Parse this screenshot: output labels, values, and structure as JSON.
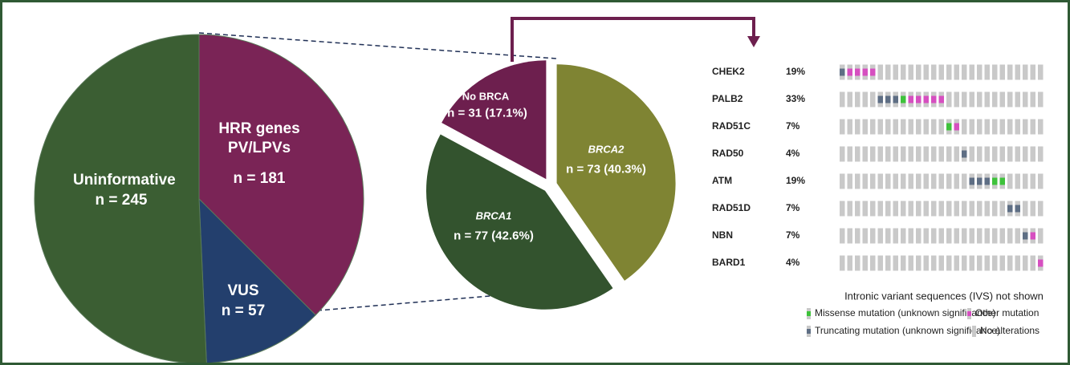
{
  "chart_data": [
    {
      "type": "pie",
      "categories": [
        "HRR genes PV/LPVs",
        "VUS",
        "Uninformative"
      ],
      "values": [
        181,
        57,
        245
      ],
      "value_labels": [
        "n = 181",
        "n = 57",
        "n = 245"
      ],
      "colors": [
        "#7a2456",
        "#233f6d",
        "#3b5e33"
      ]
    },
    {
      "type": "pie",
      "categories": [
        "BRCA2",
        "BRCA1",
        "No BRCA"
      ],
      "values": [
        73,
        77,
        31
      ],
      "value_labels": [
        "n = 73 (40.3%)",
        "n = 77 (42.6%)",
        "n = 31 (17.1%)"
      ],
      "colors": [
        "#7f8433",
        "#33532e",
        "#6d1f4e"
      ]
    },
    {
      "type": "oncoprint",
      "genes": [
        "CHEK2",
        "PALB2",
        "RAD51C",
        "RAD50",
        "ATM",
        "RAD51D",
        "NBN",
        "BARD1"
      ],
      "percents": [
        "19%",
        "33%",
        "7%",
        "4%",
        "19%",
        "7%",
        "7%",
        "4%"
      ],
      "note": "Intronic variant sequences (IVS) not shown",
      "legend": [
        {
          "name": "Missense mutation (unknown significance)",
          "color": "#3ec23b"
        },
        {
          "name": "Other mutation",
          "color": "#d64fc0"
        },
        {
          "name": "Truncating mutation (unknown significance)",
          "color": "#5e6e84"
        },
        {
          "name": "No alterations",
          "color": "#c9c9c9"
        }
      ],
      "cells": [
        [
          2,
          1,
          1,
          1,
          1,
          3,
          3,
          3,
          3,
          3,
          3,
          3,
          3,
          3,
          3,
          3,
          3,
          3,
          3,
          3,
          3,
          3,
          3,
          3,
          3,
          3,
          3
        ],
        [
          3,
          3,
          3,
          3,
          3,
          2,
          2,
          2,
          0,
          1,
          1,
          1,
          1,
          1,
          3,
          3,
          3,
          3,
          3,
          3,
          3,
          3,
          3,
          3,
          3,
          3,
          3
        ],
        [
          3,
          3,
          3,
          3,
          3,
          3,
          3,
          3,
          3,
          3,
          3,
          3,
          3,
          3,
          0,
          1,
          3,
          3,
          3,
          3,
          3,
          3,
          3,
          3,
          3,
          3,
          3
        ],
        [
          3,
          3,
          3,
          3,
          3,
          3,
          3,
          3,
          3,
          3,
          3,
          3,
          3,
          3,
          3,
          3,
          2,
          3,
          3,
          3,
          3,
          3,
          3,
          3,
          3,
          3,
          3
        ],
        [
          3,
          3,
          3,
          3,
          3,
          3,
          3,
          3,
          3,
          3,
          3,
          3,
          3,
          3,
          3,
          3,
          3,
          2,
          2,
          2,
          0,
          0,
          3,
          3,
          3,
          3,
          3
        ],
        [
          3,
          3,
          3,
          3,
          3,
          3,
          3,
          3,
          3,
          3,
          3,
          3,
          3,
          3,
          3,
          3,
          3,
          3,
          3,
          3,
          3,
          3,
          2,
          2,
          3,
          3,
          3
        ],
        [
          3,
          3,
          3,
          3,
          3,
          3,
          3,
          3,
          3,
          3,
          3,
          3,
          3,
          3,
          3,
          3,
          3,
          3,
          3,
          3,
          3,
          3,
          3,
          3,
          2,
          1,
          3
        ],
        [
          3,
          3,
          3,
          3,
          3,
          3,
          3,
          3,
          3,
          3,
          3,
          3,
          3,
          3,
          3,
          3,
          3,
          3,
          3,
          3,
          3,
          3,
          3,
          3,
          3,
          3,
          1
        ]
      ]
    }
  ]
}
